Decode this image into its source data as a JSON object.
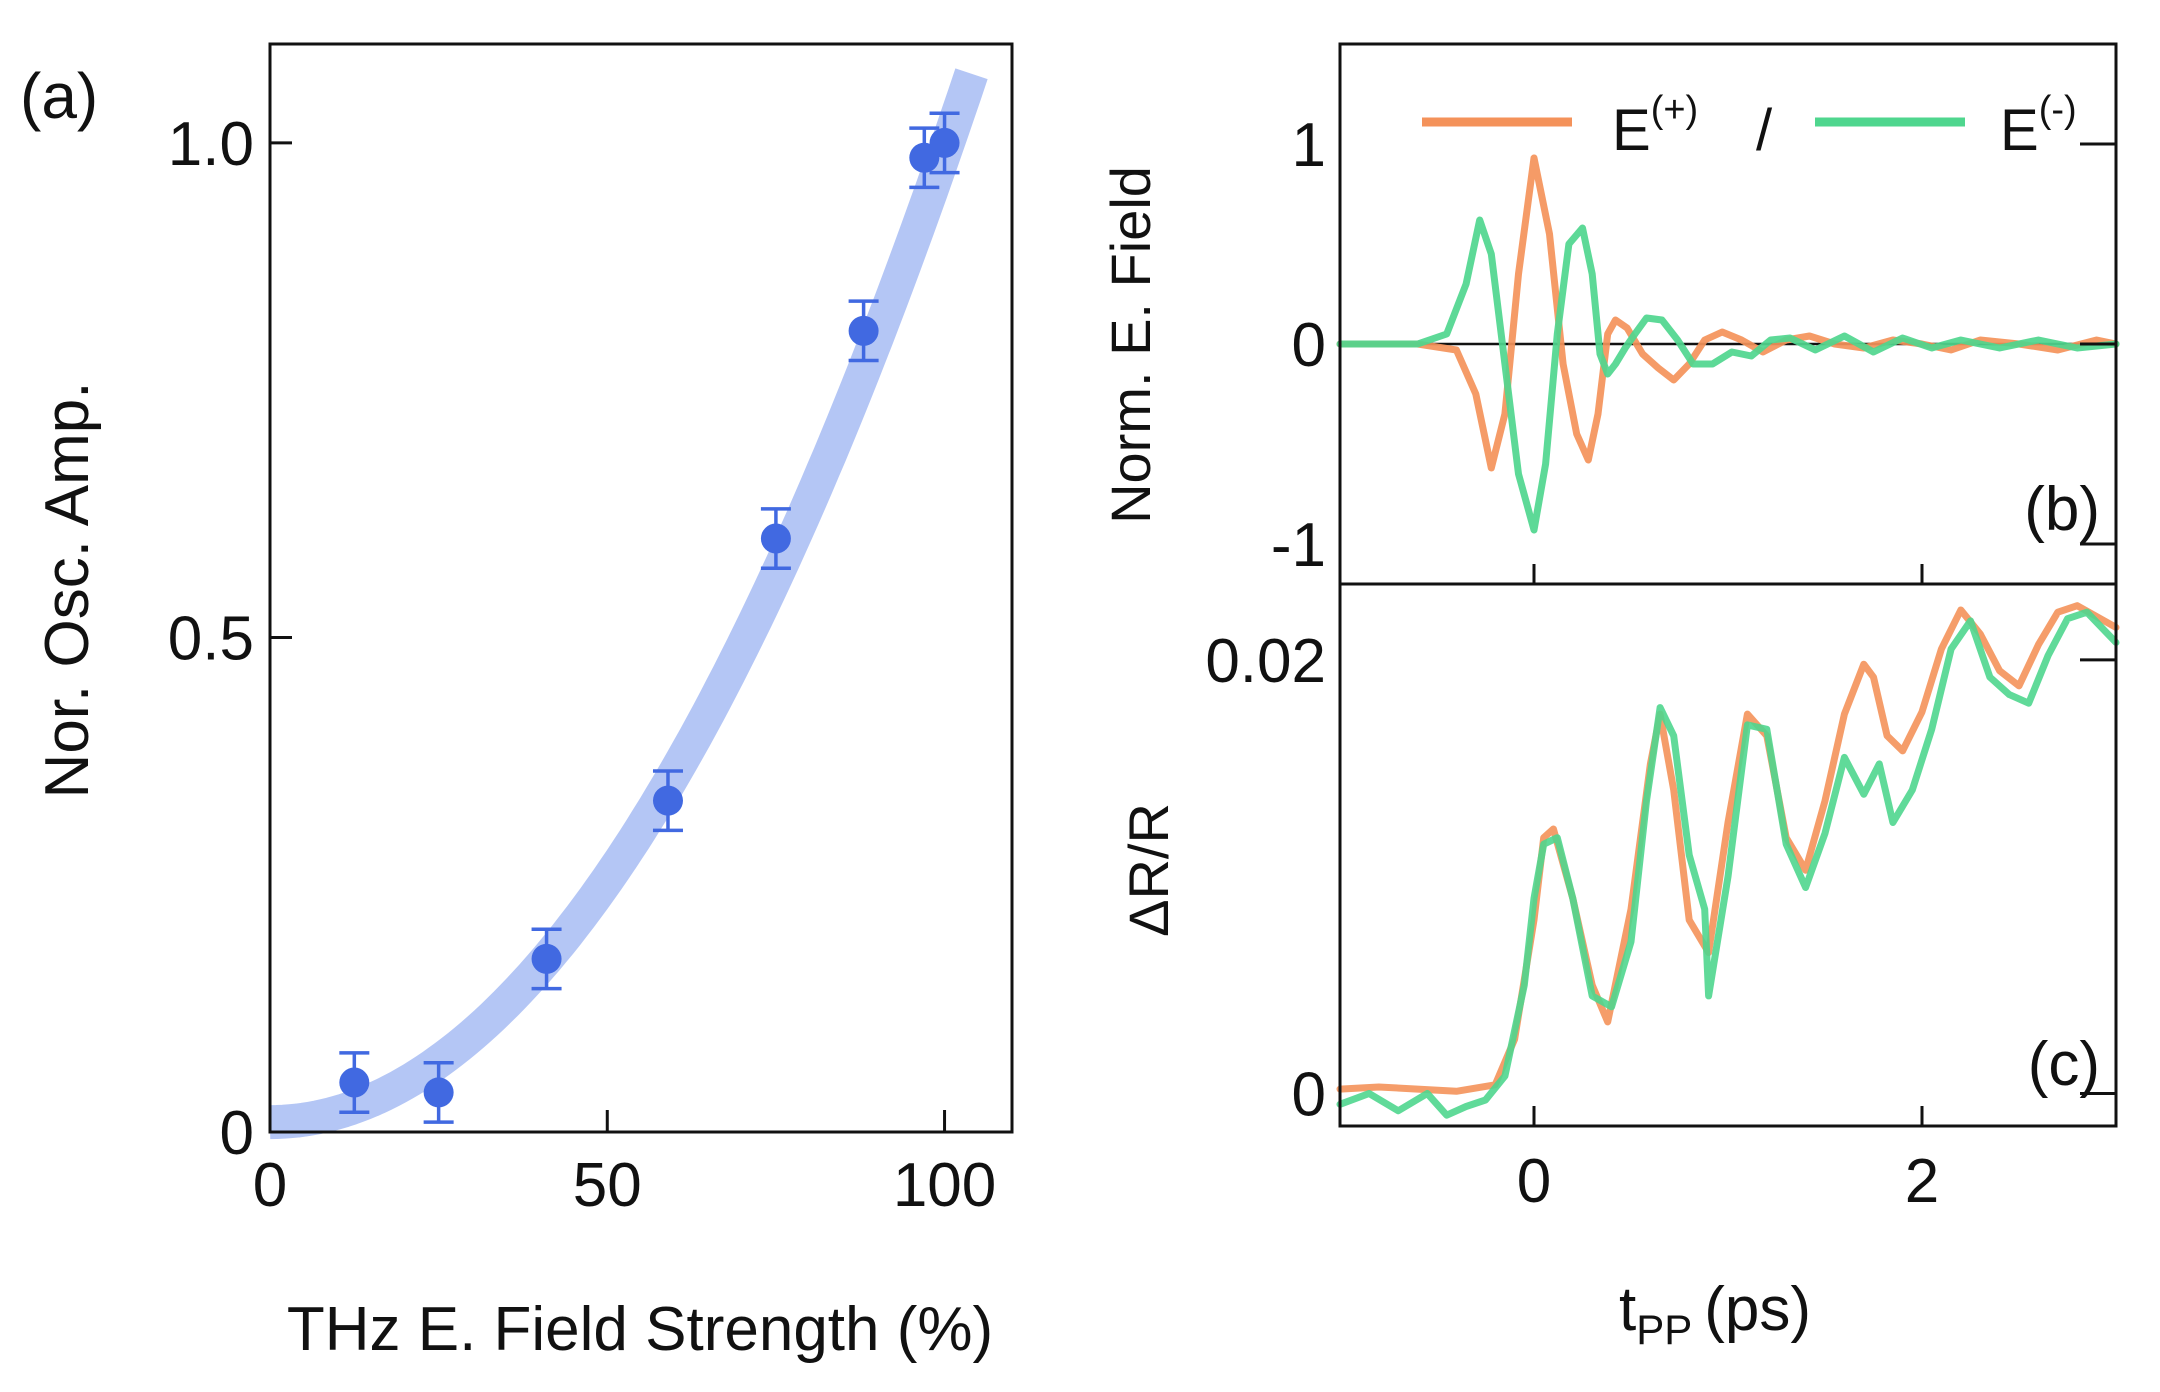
{
  "chart_data": [
    {
      "panel": "a",
      "panel_label": "(a)",
      "type": "scatter",
      "xlabel": "THz E. Field Strength (%)",
      "ylabel": "Nor. Osc. Amp.",
      "xlim": [
        0,
        110
      ],
      "ylim": [
        0,
        1.1
      ],
      "x_ticks": [
        0,
        50,
        100
      ],
      "x_tick_labels": [
        "0",
        "50",
        "100"
      ],
      "y_ticks": [
        0,
        0.5,
        1.0
      ],
      "y_tick_labels": [
        "0",
        "0.5",
        "1.0"
      ],
      "points": {
        "x": [
          12.5,
          25,
          41,
          59,
          75,
          88,
          97,
          100
        ],
        "y": [
          0.05,
          0.04,
          0.175,
          0.335,
          0.6,
          0.81,
          0.985,
          1.0
        ],
        "yerr": [
          0.03,
          0.03,
          0.03,
          0.03,
          0.03,
          0.03,
          0.03,
          0.03
        ],
        "color": "#4169e1"
      },
      "fit": {
        "model": "quadratic",
        "a": 9.8e-05,
        "c": 0.01,
        "x_range": [
          0,
          104
        ],
        "color": "#b4c6f5"
      }
    },
    {
      "panel": "b",
      "panel_label": "(b)",
      "type": "line",
      "ylabel": "Norm. E. Field",
      "xlim": [
        -1.0,
        3.0
      ],
      "ylim": [
        -1.2,
        1.5
      ],
      "x_ticks": [
        0,
        2
      ],
      "y_ticks": [
        -1,
        0,
        1
      ],
      "y_tick_labels": [
        "-1",
        "0",
        "1"
      ],
      "legend": {
        "placement": "top",
        "separator": "/",
        "entries": [
          {
            "base": "E",
            "sup": "(+)",
            "color": "#f4925a"
          },
          {
            "base": "E",
            "sup": "(-)",
            "color": "#4fd68e"
          }
        ]
      },
      "series": [
        {
          "name": "E(+)",
          "color": "#f4925a",
          "x": [
            -1.0,
            -0.6,
            -0.4,
            -0.3,
            -0.22,
            -0.15,
            -0.08,
            0.0,
            0.08,
            0.15,
            0.22,
            0.28,
            0.33,
            0.38,
            0.42,
            0.48,
            0.56,
            0.64,
            0.72,
            0.8,
            0.88,
            0.97,
            1.07,
            1.18,
            1.3,
            1.42,
            1.55,
            1.7,
            1.85,
            2.0,
            2.15,
            2.3,
            2.5,
            2.7,
            2.9,
            3.0
          ],
          "y": [
            0.0,
            0.0,
            -0.03,
            -0.25,
            -0.62,
            -0.35,
            0.35,
            0.93,
            0.55,
            -0.1,
            -0.45,
            -0.58,
            -0.35,
            0.05,
            0.12,
            0.08,
            -0.05,
            -0.12,
            -0.18,
            -0.1,
            0.02,
            0.06,
            0.02,
            -0.04,
            0.02,
            0.04,
            0.0,
            -0.02,
            0.02,
            0.0,
            -0.03,
            0.02,
            0.0,
            -0.03,
            0.02,
            0.0
          ]
        },
        {
          "name": "E(-)",
          "color": "#4fd68e",
          "x": [
            -1.0,
            -0.6,
            -0.45,
            -0.35,
            -0.28,
            -0.22,
            -0.15,
            -0.08,
            0.0,
            0.06,
            0.12,
            0.18,
            0.25,
            0.3,
            0.34,
            0.38,
            0.42,
            0.47,
            0.52,
            0.58,
            0.66,
            0.74,
            0.82,
            0.92,
            1.02,
            1.12,
            1.22,
            1.32,
            1.45,
            1.6,
            1.75,
            1.9,
            2.05,
            2.2,
            2.4,
            2.6,
            2.8,
            3.0
          ],
          "y": [
            0.0,
            0.0,
            0.05,
            0.3,
            0.62,
            0.45,
            -0.1,
            -0.65,
            -0.93,
            -0.6,
            0.05,
            0.5,
            0.58,
            0.35,
            -0.05,
            -0.15,
            -0.1,
            -0.02,
            0.05,
            0.13,
            0.12,
            0.02,
            -0.1,
            -0.1,
            -0.04,
            -0.06,
            0.02,
            0.03,
            -0.03,
            0.04,
            -0.04,
            0.03,
            -0.02,
            0.02,
            -0.02,
            0.02,
            -0.02,
            0.0
          ]
        }
      ]
    },
    {
      "panel": "c",
      "panel_label": "(c)",
      "type": "line",
      "xlabel_main": "t",
      "xlabel_sub": "PP",
      "xlabel_unit": "(ps)",
      "ylabel": "ΔR/R",
      "xlim": [
        -1.0,
        3.0
      ],
      "ylim": [
        -0.0015,
        0.0235
      ],
      "x_ticks": [
        0,
        2
      ],
      "x_tick_labels": [
        "0",
        "2"
      ],
      "y_ticks": [
        0,
        0.02
      ],
      "y_tick_labels": [
        "0",
        "0.02"
      ],
      "series": [
        {
          "name": "E(+)",
          "color": "#f4925a",
          "x": [
            -1.0,
            -0.8,
            -0.6,
            -0.4,
            -0.2,
            -0.1,
            0.0,
            0.05,
            0.1,
            0.2,
            0.3,
            0.38,
            0.5,
            0.6,
            0.65,
            0.72,
            0.8,
            0.9,
            1.0,
            1.1,
            1.2,
            1.3,
            1.4,
            1.5,
            1.6,
            1.7,
            1.75,
            1.82,
            1.9,
            2.0,
            2.1,
            2.2,
            2.3,
            2.4,
            2.5,
            2.6,
            2.7,
            2.8,
            2.9,
            3.0
          ],
          "y": [
            0.0002,
            0.0003,
            0.0002,
            0.0001,
            0.0004,
            0.0025,
            0.008,
            0.0118,
            0.0122,
            0.009,
            0.005,
            0.0033,
            0.0085,
            0.0152,
            0.0175,
            0.014,
            0.008,
            0.0065,
            0.0125,
            0.0175,
            0.0165,
            0.0118,
            0.0103,
            0.0135,
            0.0175,
            0.0198,
            0.0192,
            0.0165,
            0.0158,
            0.0176,
            0.0205,
            0.0223,
            0.0212,
            0.0195,
            0.0188,
            0.0207,
            0.0222,
            0.0225,
            0.022,
            0.0215
          ]
        },
        {
          "name": "E(-)",
          "color": "#4fd68e",
          "x": [
            -1.0,
            -0.85,
            -0.7,
            -0.55,
            -0.45,
            -0.35,
            -0.25,
            -0.15,
            -0.05,
            0.0,
            0.05,
            0.12,
            0.2,
            0.3,
            0.4,
            0.5,
            0.58,
            0.65,
            0.72,
            0.8,
            0.88,
            0.9,
            1.0,
            1.1,
            1.2,
            1.3,
            1.4,
            1.5,
            1.6,
            1.7,
            1.78,
            1.85,
            1.95,
            2.05,
            2.15,
            2.25,
            2.35,
            2.45,
            2.55,
            2.65,
            2.75,
            2.85,
            3.0
          ],
          "y": [
            -0.0005,
            0.0,
            -0.0008,
            0.0,
            -0.001,
            -0.0006,
            -0.0003,
            0.0008,
            0.005,
            0.009,
            0.0115,
            0.0118,
            0.009,
            0.0045,
            0.004,
            0.007,
            0.0135,
            0.0178,
            0.0165,
            0.011,
            0.0085,
            0.0045,
            0.01,
            0.017,
            0.0168,
            0.0115,
            0.0095,
            0.012,
            0.0155,
            0.0138,
            0.0152,
            0.0125,
            0.014,
            0.0168,
            0.0205,
            0.0218,
            0.0192,
            0.0184,
            0.018,
            0.0202,
            0.0219,
            0.0222,
            0.0208
          ]
        }
      ]
    }
  ]
}
